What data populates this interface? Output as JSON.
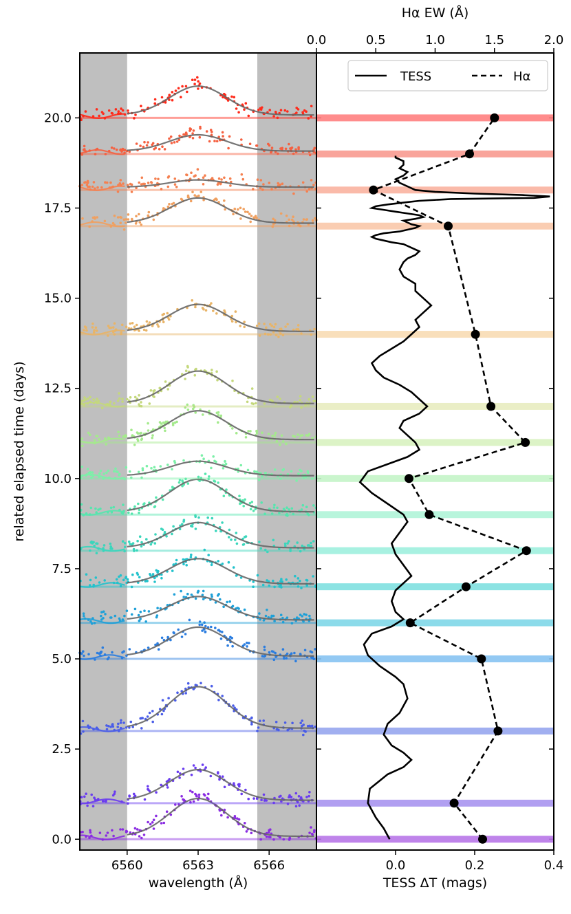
{
  "chart_data": [
    {
      "type": "scatter",
      "panel": "left",
      "xlabel": "wavelength (Å)",
      "ylabel": "related elapsed time (days)",
      "xlim": [
        6558,
        6568
      ],
      "ylim": [
        -0.3,
        21.8
      ],
      "xticks": [
        6560,
        6563,
        6566
      ],
      "yticks": [
        "0.0",
        "2.5",
        "5.0",
        "7.5",
        "10.0",
        "12.5",
        "15.0",
        "17.5",
        "20.0"
      ],
      "shaded_regions": [
        [
          6558,
          6560
        ],
        [
          6565.5,
          6568
        ]
      ],
      "line_center": 6563,
      "profiles": [
        {
          "day": 0.0,
          "amp": 1.05,
          "color": "#8a2be2"
        },
        {
          "day": 1.0,
          "amp": 0.85,
          "color": "#6a3cf0"
        },
        {
          "day": 3.0,
          "amp": 1.15,
          "color": "#4a5de8"
        },
        {
          "day": 5.0,
          "amp": 0.8,
          "color": "#2a7de0"
        },
        {
          "day": 6.0,
          "amp": 0.65,
          "color": "#1ea0d8"
        },
        {
          "day": 7.0,
          "amp": 0.7,
          "color": "#22c2cc"
        },
        {
          "day": 8.0,
          "amp": 0.7,
          "color": "#3ad6bc"
        },
        {
          "day": 9.0,
          "amp": 0.9,
          "color": "#55e6ae"
        },
        {
          "day": 10.0,
          "amp": 0.4,
          "color": "#7cf0a8"
        },
        {
          "day": 11.0,
          "amp": 0.8,
          "color": "#a4ea8c"
        },
        {
          "day": 12.0,
          "amp": 0.9,
          "color": "#c4d87c"
        },
        {
          "day": 14.0,
          "amp": 0.75,
          "color": "#e8b468"
        },
        {
          "day": 17.0,
          "amp": 0.7,
          "color": "#f0a060"
        },
        {
          "day": 18.0,
          "amp": 0.2,
          "color": "#f58050"
        },
        {
          "day": 19.0,
          "amp": 0.45,
          "color": "#f56040"
        },
        {
          "day": 20.0,
          "amp": 0.8,
          "color": "#ff2a1a"
        }
      ]
    },
    {
      "type": "line",
      "panel": "right",
      "xlabel": "TESS ΔT (mags)",
      "top_xlabel": "Hα EW (Å)",
      "xlim": [
        -0.2,
        0.4
      ],
      "top_xlim": [
        0.0,
        2.0
      ],
      "ylim": [
        -0.3,
        21.8
      ],
      "xticks": [
        "0.0",
        "0.2",
        "0.4"
      ],
      "top_xticks": [
        "0.0",
        "0.5",
        "1.0",
        "1.5",
        "2.0"
      ],
      "legend": {
        "position": "top-right",
        "entries": [
          "TESS",
          "Hα"
        ]
      },
      "series": [
        {
          "name": "Hα",
          "axis": "top",
          "style": "dashed-with-markers",
          "x": [
            1.4,
            1.16,
            1.53,
            1.39,
            0.79,
            1.26,
            1.77,
            0.95,
            0.78,
            1.76,
            1.47,
            1.34,
            1.11,
            0.48,
            1.29,
            1.5
          ],
          "y": [
            0.0,
            1.0,
            3.0,
            5.0,
            6.0,
            7.0,
            8.0,
            9.0,
            10.0,
            11.0,
            12.0,
            14.0,
            17.0,
            18.0,
            19.0,
            20.0
          ]
        },
        {
          "name": "TESS",
          "axis": "bottom",
          "style": "solid",
          "x": [
            -0.015,
            -0.03,
            -0.05,
            -0.07,
            -0.065,
            -0.02,
            0.02,
            0.04,
            0.02,
            -0.01,
            -0.03,
            -0.02,
            0.01,
            0.03,
            0.02,
            0.0,
            -0.04,
            -0.07,
            -0.08,
            -0.06,
            -0.01,
            0.02,
            0.0,
            -0.01,
            0.0,
            0.04,
            0.02,
            0.0,
            -0.01,
            0.01,
            0.03,
            0.02,
            -0.02,
            -0.06,
            -0.09,
            -0.07,
            -0.02,
            0.03,
            0.06,
            0.05,
            0.03,
            0.01,
            0.02,
            0.06,
            0.08,
            0.06,
            0.04,
            0.01,
            -0.03,
            -0.05,
            -0.06,
            -0.04,
            -0.01,
            0.02,
            0.04,
            0.06,
            0.05,
            0.07,
            0.09,
            0.07,
            0.05,
            0.05,
            0.02,
            0.01,
            0.02,
            0.03,
            0.05,
            0.06,
            0.04,
            0.02,
            -0.01,
            -0.03,
            -0.05,
            -0.06,
            -0.05,
            -0.03,
            0.01,
            0.03,
            0.05,
            0.06,
            0.04,
            0.03,
            0.02,
            0.05,
            0.07,
            0.06,
            0.03,
            0.0,
            -0.03,
            -0.06,
            -0.05,
            -0.02,
            0.02,
            0.06,
            0.14,
            0.35,
            0.39,
            0.32,
            0.2,
            0.1,
            0.05,
            0.03,
            0.01,
            0.0,
            0.02,
            0.03,
            0.01,
            0.02,
            0.02,
            0.0,
            0.0
          ],
          "y": [
            0.0,
            0.3,
            0.6,
            1.0,
            1.4,
            1.8,
            2.0,
            2.2,
            2.4,
            2.6,
            2.9,
            3.2,
            3.5,
            3.9,
            4.3,
            4.5,
            4.8,
            5.1,
            5.4,
            5.7,
            5.9,
            6.1,
            6.3,
            6.6,
            6.9,
            7.3,
            7.6,
            7.9,
            8.2,
            8.5,
            8.8,
            9.0,
            9.3,
            9.6,
            9.9,
            10.2,
            10.4,
            10.6,
            10.8,
            11.0,
            11.2,
            11.4,
            11.6,
            11.8,
            12.0,
            12.2,
            12.4,
            12.6,
            12.8,
            13.0,
            13.2,
            13.4,
            13.6,
            13.8,
            14.0,
            14.2,
            14.4,
            14.6,
            14.8,
            15.0,
            15.2,
            15.4,
            15.6,
            15.8,
            16.0,
            16.1,
            16.2,
            16.3,
            16.4,
            16.5,
            16.55,
            16.6,
            16.65,
            16.7,
            16.75,
            16.8,
            16.85,
            16.9,
            16.95,
            17.0,
            17.05,
            17.1,
            17.15,
            17.2,
            17.25,
            17.3,
            17.35,
            17.4,
            17.45,
            17.5,
            17.55,
            17.6,
            17.65,
            17.7,
            17.75,
            17.78,
            17.82,
            17.86,
            17.9,
            17.95,
            18.0,
            18.1,
            18.2,
            18.3,
            18.4,
            18.5,
            18.6,
            18.7,
            18.8,
            18.9,
            18.95
          ]
        }
      ],
      "bands": [
        {
          "day": 0.0,
          "color": "#b877e8"
        },
        {
          "day": 1.0,
          "color": "#a895f0"
        },
        {
          "day": 3.0,
          "color": "#97a6ee"
        },
        {
          "day": 5.0,
          "color": "#87c3f2"
        },
        {
          "day": 6.0,
          "color": "#7fd7e8"
        },
        {
          "day": 7.0,
          "color": "#80e0e0"
        },
        {
          "day": 8.0,
          "color": "#9ef0de"
        },
        {
          "day": 9.0,
          "color": "#b0f4d8"
        },
        {
          "day": 10.0,
          "color": "#c4f4c8"
        },
        {
          "day": 11.0,
          "color": "#d8f2c0"
        },
        {
          "day": 12.0,
          "color": "#e8ecc0"
        },
        {
          "day": 14.0,
          "color": "#f8dcb4"
        },
        {
          "day": 17.0,
          "color": "#fac8aa"
        },
        {
          "day": 18.0,
          "color": "#f9b3a0"
        },
        {
          "day": 19.0,
          "color": "#f89a90"
        },
        {
          "day": 20.0,
          "color": "#ff8080"
        }
      ]
    }
  ]
}
